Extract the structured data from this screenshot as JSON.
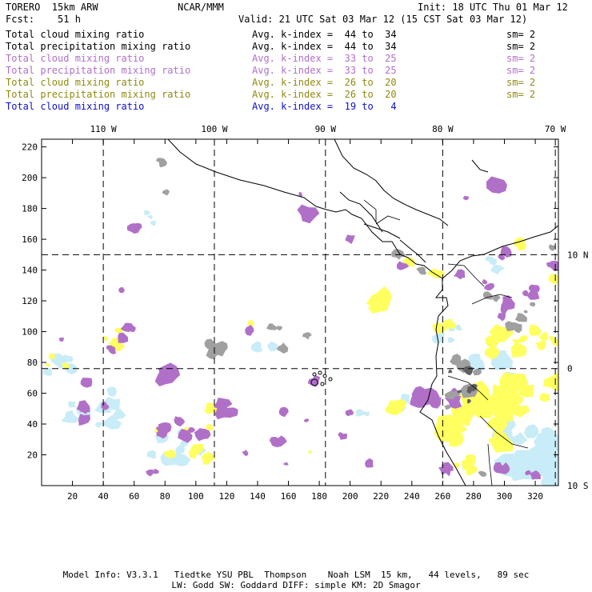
{
  "header": {
    "model": "TORERO  15km ARW",
    "center": "NCAR/MMM",
    "init": "Init: 18 UTC Thu 01 Mar 12",
    "fcst": "Fcst:    51 h",
    "valid": "Valid: 21 UTC Sat 03 Mar 12 (15 CST Sat 03 Mar 12)"
  },
  "legend_rows": [
    {
      "field": "Total cloud mixing ratio",
      "avg": "Avg. k-index =  44 to  34",
      "sm": "sm= 2",
      "color": "#000000"
    },
    {
      "field": "Total precipitation mixing ratio",
      "avg": "Avg. k-index =  44 to  34",
      "sm": "sm= 2",
      "color": "#000000"
    },
    {
      "field": "Total cloud mixing ratio",
      "avg": "Avg. k-index =  33 to  25",
      "sm": "sm= 2",
      "color": "#b070c8"
    },
    {
      "field": "Total precipitation mixing ratio",
      "avg": "Avg. k-index =  33 to  25",
      "sm": "sm= 2",
      "color": "#b070c8"
    },
    {
      "field": "Total cloud mixing ratio",
      "avg": "Avg. k-index =  26 to  20",
      "sm": "sm= 2",
      "color": "#908a10"
    },
    {
      "field": "Total precipitation mixing ratio",
      "avg": "Avg. k-index =  26 to  20",
      "sm": "sm= 2",
      "color": "#908a10"
    },
    {
      "field": "Total cloud mixing ratio",
      "avg": "Avg. k-index =  19 to   4",
      "sm": "",
      "color": "#1010d0"
    }
  ],
  "map": {
    "x_range": [
      0,
      335
    ],
    "y_range": [
      0,
      225
    ],
    "x_ticks": [
      20,
      40,
      60,
      80,
      100,
      120,
      140,
      160,
      180,
      200,
      220,
      240,
      260,
      280,
      300,
      320
    ],
    "y_ticks": [
      20,
      40,
      60,
      80,
      100,
      120,
      140,
      160,
      180,
      200,
      220
    ],
    "lon_labels": [
      {
        "text": "110 W",
        "x": 40
      },
      {
        "text": "100 W",
        "x": 112
      },
      {
        "text": "90 W",
        "x": 184
      },
      {
        "text": "80 W",
        "x": 260
      },
      {
        "text": "70 W",
        "x": 333
      }
    ],
    "lat_labels": [
      {
        "text": "10 N",
        "y": 150
      },
      {
        "text": "0",
        "y": 76
      },
      {
        "text": "10 S",
        "y": 0
      }
    ],
    "colors": {
      "gray": "#a0a0a0",
      "dark_gray": "#606060",
      "violet": "#b070c8",
      "yellow": "#ffff60",
      "light_blue": "#c8ecf8",
      "grid": "#000000"
    }
  },
  "footer": {
    "line1": "Model Info: V3.3.1   Tiedtke YSU PBL  Thompson    Noah LSM  15 km,   44 levels,   89 sec",
    "line2": "LW: Godd SW: Goddard DIFF: simple KM: 2D Smagor"
  }
}
